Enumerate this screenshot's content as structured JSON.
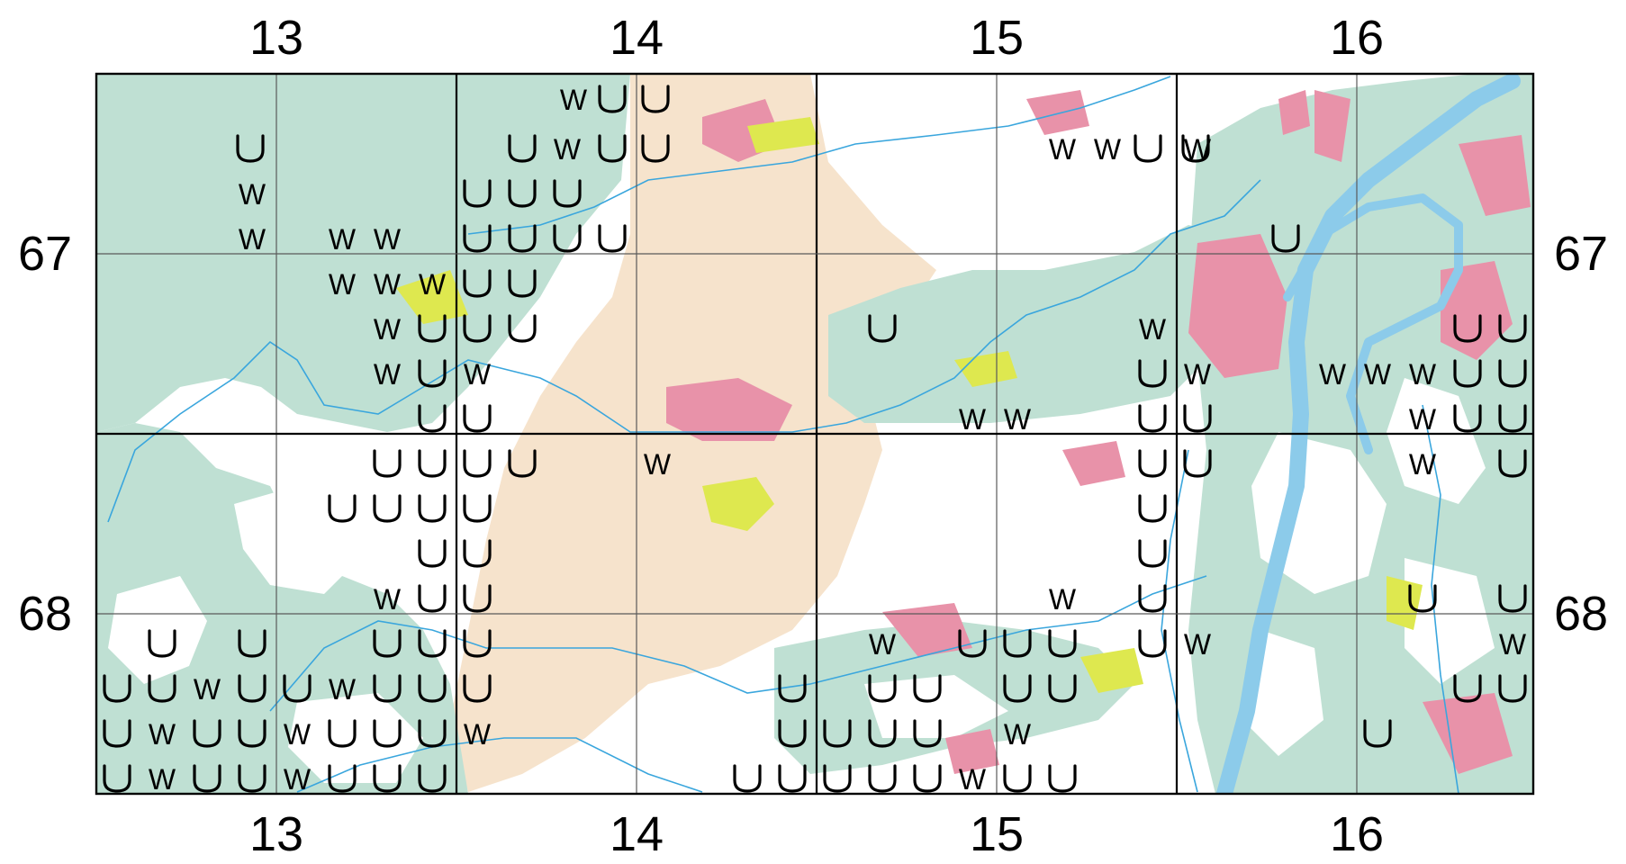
{
  "map": {
    "x_tick_labels": [
      "13",
      "14",
      "15",
      "16"
    ],
    "y_tick_labels": [
      "67",
      "68"
    ],
    "colors": {
      "forest": "#bfe0d3",
      "urban": "#e892a9",
      "crop": "#dee84f",
      "sand": "#f6e3cc",
      "open": "#ffffff",
      "river": "#8ccbea",
      "stream": "#3aa6dd"
    },
    "symbol_glyphs": {
      "W": "W",
      "U": "U"
    },
    "symbol_rows": [
      {
        "row": 0,
        "col": 0,
        "cells": "..............................."
      }
    ]
  }
}
